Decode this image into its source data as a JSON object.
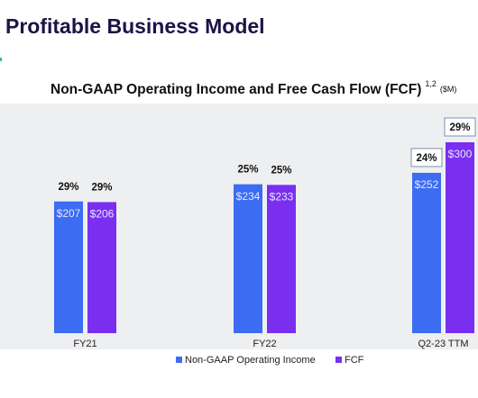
{
  "header": {
    "title": "Profitable Business Model"
  },
  "chart_data": {
    "type": "bar",
    "title": "Non-GAAP Operating Income and Free Cash Flow (FCF)",
    "title_superscript": "1,2",
    "unit": "($M)",
    "categories": [
      "FY21",
      "FY22",
      "Q2-23 TTM"
    ],
    "series": [
      {
        "name": "Non-GAAP Operating Income",
        "color": "#3b6cf2",
        "values": [
          207,
          234,
          252
        ],
        "value_labels": [
          "$207",
          "$234",
          "$252"
        ],
        "margins": [
          "29%",
          "25%",
          "24%"
        ]
      },
      {
        "name": "FCF",
        "color": "#7a2ff0",
        "values": [
          206,
          233,
          300
        ],
        "value_labels": [
          "$206",
          "$233",
          "$300"
        ],
        "margins": [
          "29%",
          "25%",
          "29%"
        ]
      }
    ],
    "legend": "bottom"
  }
}
